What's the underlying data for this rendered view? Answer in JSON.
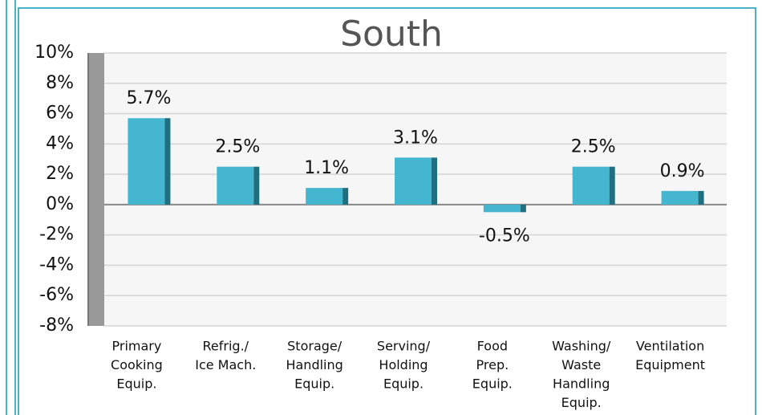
{
  "chart_data": {
    "type": "bar",
    "title": "South",
    "categories": [
      [
        "Primary",
        "Cooking",
        "Equip."
      ],
      [
        "Refrig./",
        "Ice Mach."
      ],
      [
        "Storage/",
        "Handling",
        "Equip."
      ],
      [
        "Serving/",
        "Holding",
        "Equip."
      ],
      [
        "Food",
        "Prep.",
        "Equip."
      ],
      [
        "Washing/",
        "Waste",
        "Handling",
        "Equip."
      ],
      [
        "Ventilation",
        "Equipment"
      ]
    ],
    "values": [
      5.7,
      2.5,
      1.1,
      3.1,
      -0.5,
      2.5,
      0.9
    ],
    "value_labels": [
      "5.7%",
      "2.5%",
      "1.1%",
      "3.1%",
      "-0.5%",
      "2.5%",
      "0.9%"
    ],
    "color": "#45b6d0",
    "ylim": [
      -8,
      10
    ],
    "yticks": [
      {
        "value": -8,
        "label": "-8%"
      },
      {
        "value": -6,
        "label": "-6%"
      },
      {
        "value": -4,
        "label": "-4%"
      },
      {
        "value": -2,
        "label": "-2%"
      },
      {
        "value": 0,
        "label": "0%"
      },
      {
        "value": 2,
        "label": "2%"
      },
      {
        "value": 4,
        "label": "4%"
      },
      {
        "value": 6,
        "label": "6%"
      },
      {
        "value": 8,
        "label": "8%"
      },
      {
        "value": 10,
        "label": "10%"
      }
    ],
    "grid": true
  }
}
